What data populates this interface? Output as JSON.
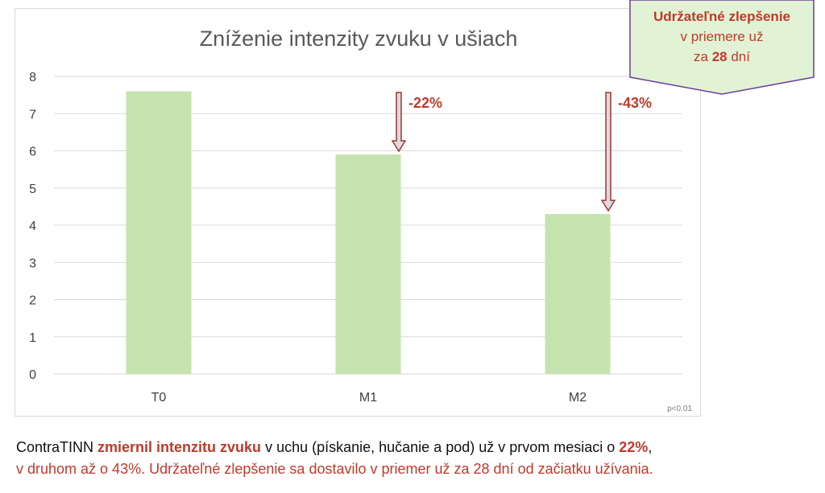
{
  "chart_data": {
    "type": "bar",
    "title": "Zníženie intenzity zvuku v ušiach",
    "categories": [
      "T0",
      "M1",
      "M2"
    ],
    "values": [
      7.6,
      5.9,
      4.3
    ],
    "ylim": [
      0,
      8
    ],
    "yticks": [
      "0",
      "1",
      "2",
      "3",
      "4",
      "5",
      "6",
      "7",
      "8"
    ],
    "grid": true,
    "bar_color": "#c5e3ae",
    "annotations": [
      {
        "category": "M1",
        "label": "-22%"
      },
      {
        "category": "M2",
        "label": "-43%"
      }
    ],
    "footnote": "p<0.01"
  },
  "callout": {
    "line1": "Udržateľné zlepšenie",
    "line2": "v priemere už",
    "line3_pre": "za ",
    "line3_bold": "28",
    "line3_post": " dní",
    "fill": "#e2f3d5",
    "border": "#6a3d9a"
  },
  "summary": {
    "lead": "ContraTINN ",
    "bold1": "zmiernil intenzitu zvuku",
    "text1": " v uchu (pískanie, hučanie a pod) už v prvom mesiaci o ",
    "bold2": "22%",
    "text2": ",",
    "line2": "v druhom až o 43%. Udržateľné zlepšenie sa dostavilo v priemer už za 28 dní od začiatku užívania."
  },
  "colors": {
    "accent": "#c0392b",
    "arrow_fill": "#d6dce4",
    "grid": "#d9d9d9"
  }
}
